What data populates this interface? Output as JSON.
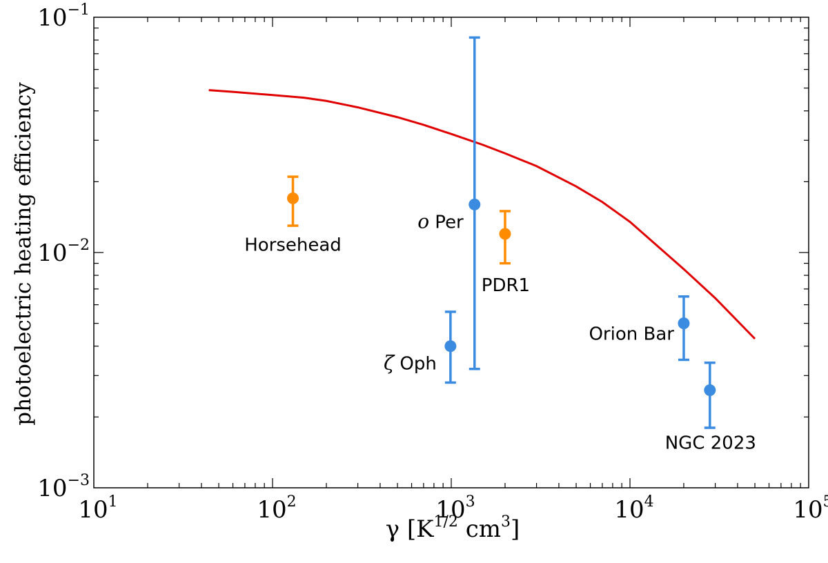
{
  "chart_data": {
    "type": "scatter",
    "xscale": "log",
    "yscale": "log",
    "xlim": [
      10,
      100000
    ],
    "ylim": [
      0.001,
      0.1
    ],
    "xlabel_base": "γ [K",
    "xlabel_exp1": "1/2",
    "xlabel_mid": " cm",
    "xlabel_exp2": "3",
    "xlabel_end": "]",
    "ylabel": "photoelectric heating efficiency",
    "x_ticks": [
      {
        "value": 10,
        "base": "10",
        "exp": "1"
      },
      {
        "value": 100,
        "base": "10",
        "exp": "2"
      },
      {
        "value": 1000,
        "base": "10",
        "exp": "3"
      },
      {
        "value": 10000,
        "base": "10",
        "exp": "4"
      },
      {
        "value": 100000,
        "base": "10",
        "exp": "5"
      }
    ],
    "y_ticks": [
      {
        "value": 0.001,
        "base": "10",
        "exp": "−3"
      },
      {
        "value": 0.01,
        "base": "10",
        "exp": "−2"
      },
      {
        "value": 0.1,
        "base": "10",
        "exp": "−1"
      }
    ],
    "curve": {
      "color": "#e00000",
      "x": [
        44,
        60,
        100,
        150,
        200,
        300,
        500,
        700,
        1000,
        1500,
        2000,
        3000,
        5000,
        7000,
        10000,
        15000,
        20000,
        30000,
        50000
      ],
      "y": [
        0.049,
        0.0482,
        0.0467,
        0.0455,
        0.0441,
        0.0414,
        0.0376,
        0.0349,
        0.0319,
        0.0287,
        0.0264,
        0.0233,
        0.0191,
        0.0164,
        0.0135,
        0.0103,
        0.0085,
        0.0064,
        0.0043
      ]
    },
    "points": [
      {
        "label": "Horsehead",
        "x": 130,
        "y": 0.017,
        "ylow": 0.013,
        "yhigh": 0.021,
        "color": "#ff8c00"
      },
      {
        "label": "o Per",
        "label_prefix": "o",
        "label_rest": " Per",
        "x": 1350,
        "y": 0.016,
        "ylow": 0.0032,
        "yhigh": 0.082,
        "color": "#3b8be0"
      },
      {
        "label": "PDR1",
        "x": 2000,
        "y": 0.012,
        "ylow": 0.009,
        "yhigh": 0.015,
        "color": "#ff8c00"
      },
      {
        "label": "ζ Oph",
        "label_prefix": "ζ",
        "label_rest": " Oph",
        "x": 990,
        "y": 0.004,
        "ylow": 0.0028,
        "yhigh": 0.0056,
        "color": "#3b8be0"
      },
      {
        "label": "Orion Bar",
        "x": 20000,
        "y": 0.005,
        "ylow": 0.0035,
        "yhigh": 0.0065,
        "color": "#3b8be0"
      },
      {
        "label": "NGC 2023",
        "x": 28000,
        "y": 0.0026,
        "ylow": 0.0018,
        "yhigh": 0.0034,
        "color": "#3b8be0"
      }
    ]
  }
}
